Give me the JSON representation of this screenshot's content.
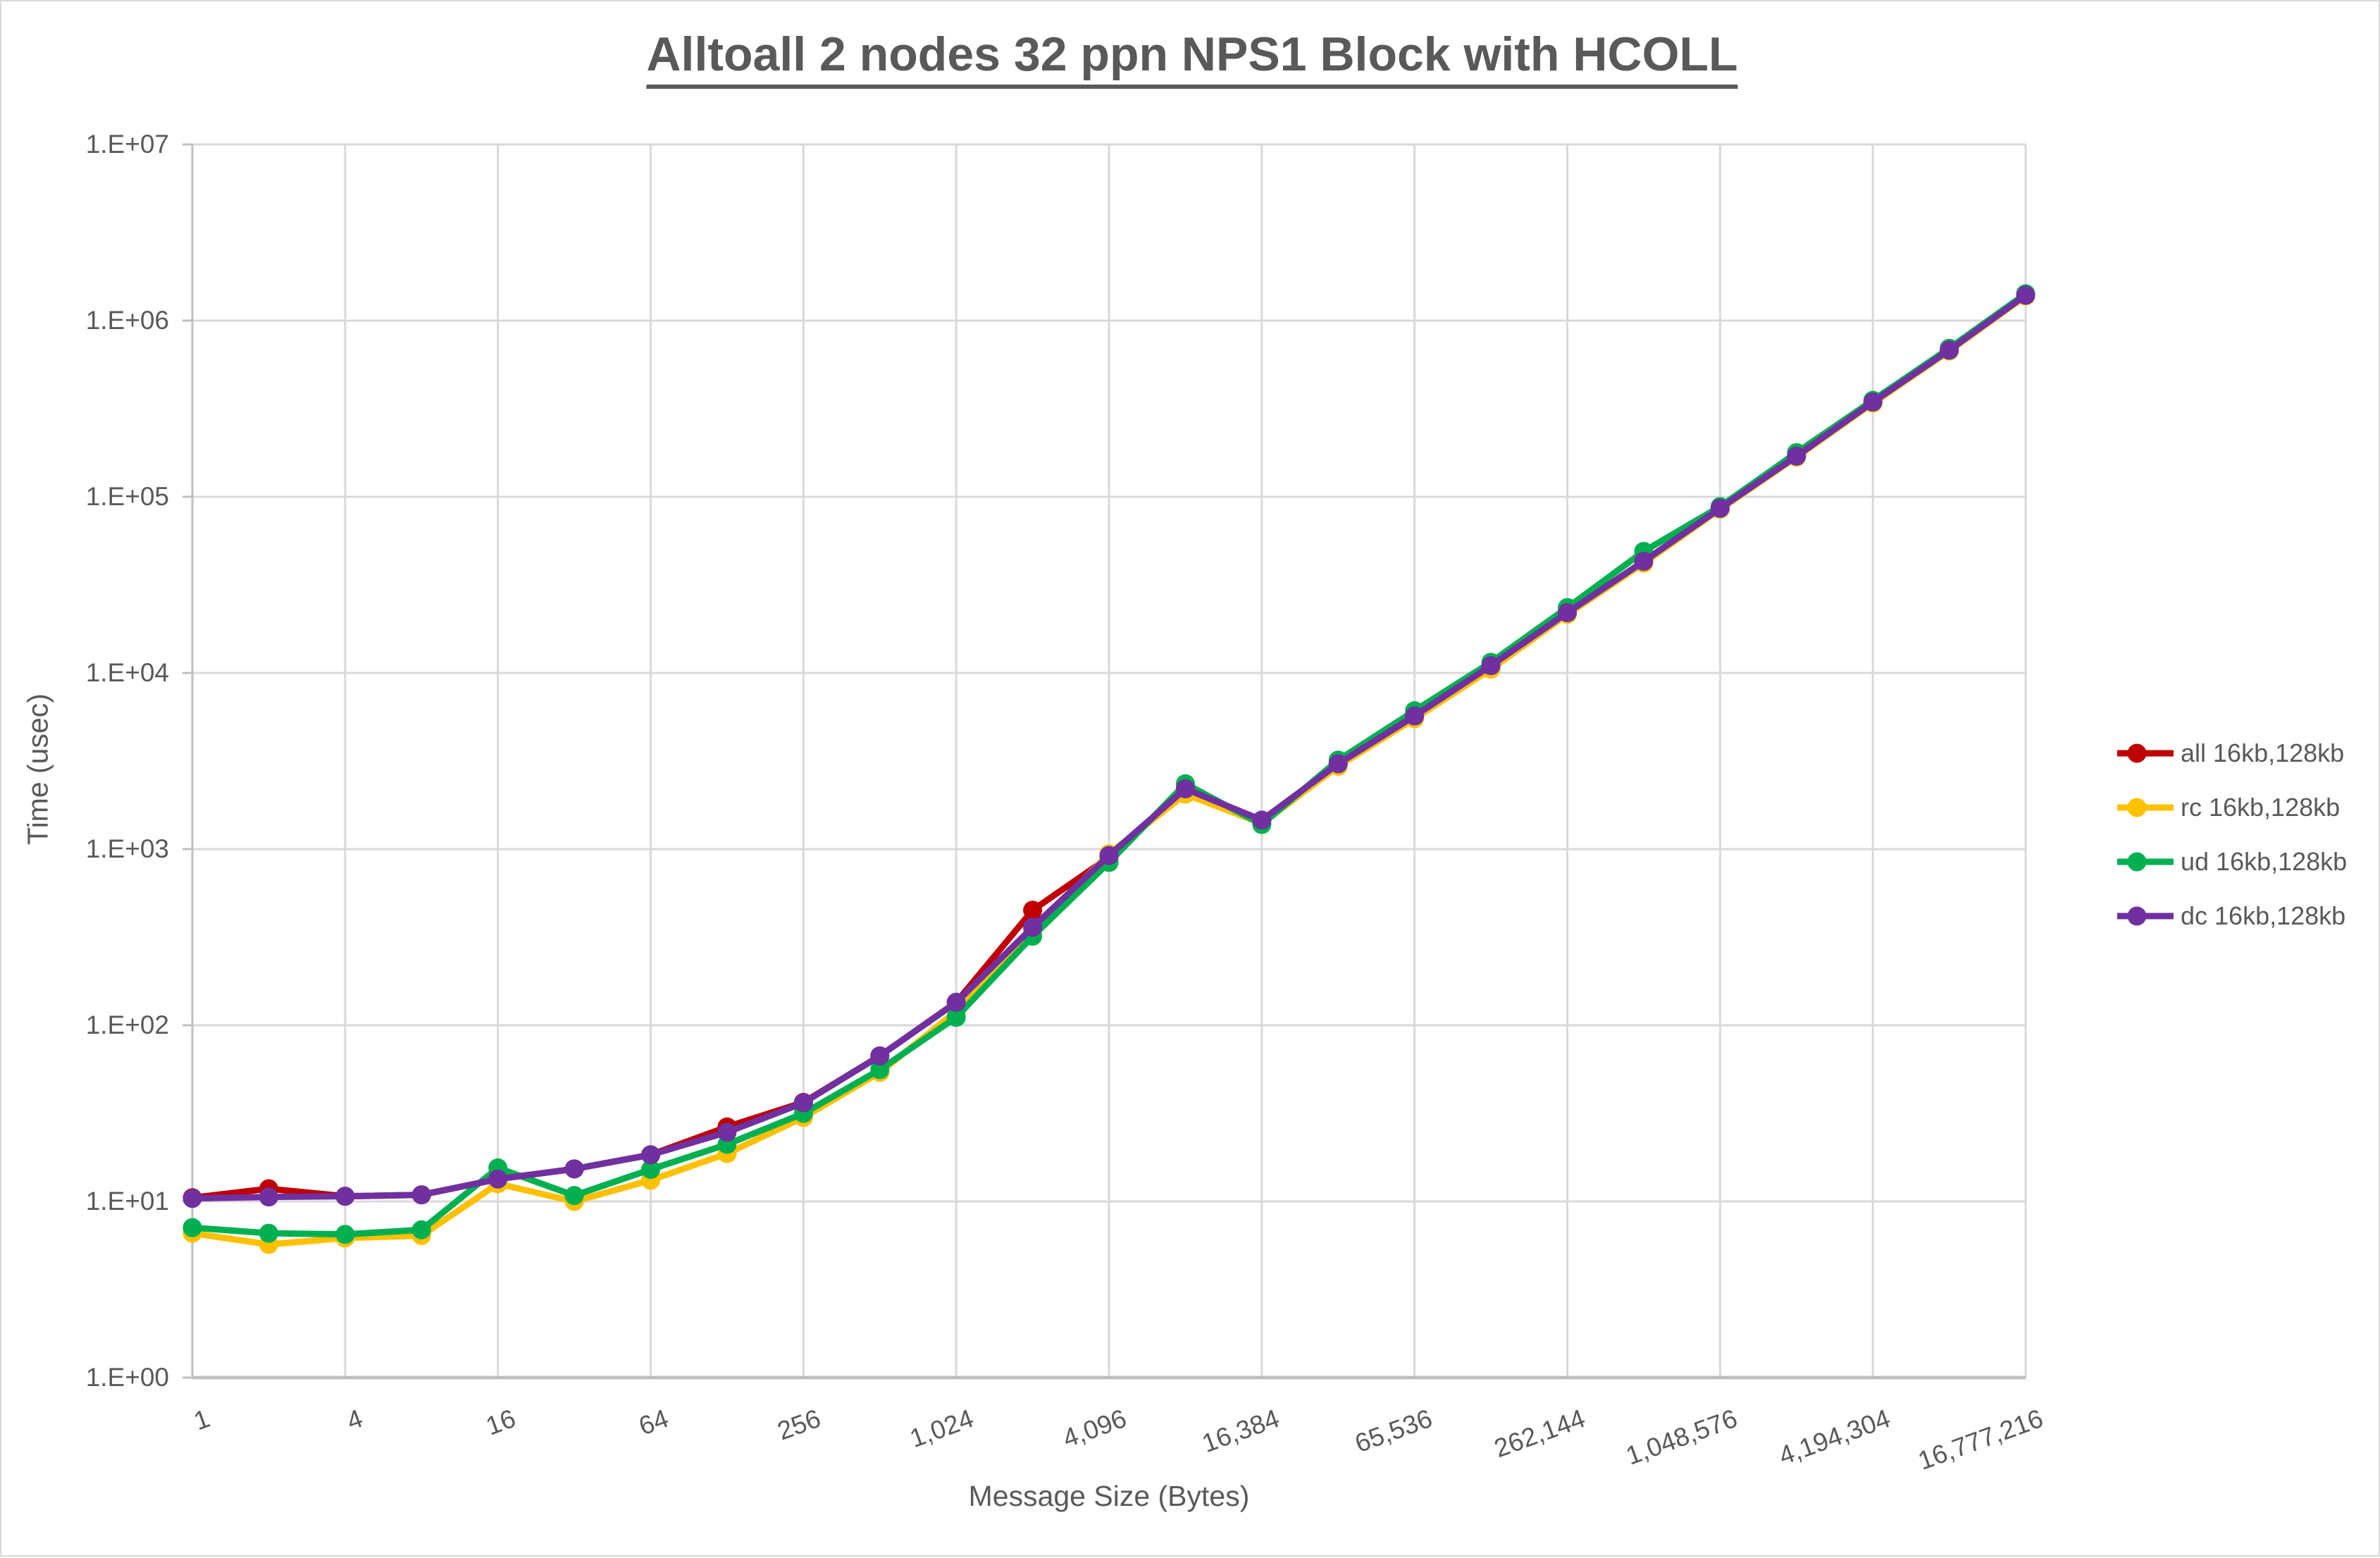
{
  "chart_data": {
    "type": "line",
    "title": "Alltoall 2 nodes 32 ppn NPS1 Block with HCOLL",
    "xlabel": "Message Size (Bytes)",
    "ylabel": "Time (usec)",
    "x_scale": "log2",
    "y_scale": "log10",
    "ylim": [
      1,
      10000000
    ],
    "xlim": [
      1,
      16777216
    ],
    "grid": true,
    "legend_position": "right",
    "y_tick_labels": [
      "1.E+00",
      "1.E+01",
      "1.E+02",
      "1.E+03",
      "1.E+04",
      "1.E+05",
      "1.E+06",
      "1.E+07"
    ],
    "x_tick_labels": [
      "1",
      "4",
      "16",
      "64",
      "256",
      "1,024",
      "4,096",
      "16,384",
      "65,536",
      "262,144",
      "1,048,576",
      "4,194,304",
      "16,777,216"
    ],
    "categories": [
      1,
      2,
      4,
      8,
      16,
      32,
      64,
      128,
      256,
      512,
      1024,
      2048,
      4096,
      8192,
      16384,
      32768,
      65536,
      131072,
      262144,
      524288,
      1048576,
      2097152,
      4194304,
      8388608,
      16777216
    ],
    "series": [
      {
        "name": "all 16kb,128kb",
        "color": "#C00000",
        "values": [
          10.5,
          11.8,
          10.7,
          10.9,
          13.4,
          15.3,
          18.4,
          26.5,
          36.5,
          67,
          135,
          450,
          900,
          2200,
          1460,
          3050,
          5700,
          11000,
          22000,
          43000,
          86000,
          170000,
          345000,
          680000,
          1390000
        ]
      },
      {
        "name": "rc 16kb,128kb",
        "color": "#FFC000",
        "values": [
          6.6,
          5.7,
          6.2,
          6.4,
          12.6,
          10.0,
          13.2,
          18.7,
          30,
          54,
          120,
          345,
          940,
          2050,
          1400,
          2950,
          5500,
          10500,
          21500,
          42000,
          85000,
          168000,
          340000,
          672000,
          1380000
        ]
      },
      {
        "name": "ud 16kb,128kb",
        "color": "#00B050",
        "values": [
          7.1,
          6.6,
          6.5,
          6.9,
          15.5,
          10.8,
          15.2,
          21.1,
          31.6,
          56,
          111,
          320,
          840,
          2350,
          1380,
          3200,
          6100,
          11500,
          23500,
          49000,
          88000,
          178000,
          353000,
          697000,
          1421000
        ]
      },
      {
        "name": "dc 16kb,128kb",
        "color": "#7030A0",
        "values": [
          10.4,
          10.6,
          10.7,
          10.9,
          13.4,
          15.3,
          18.4,
          24.7,
          36.3,
          67,
          135,
          360,
          920,
          2200,
          1460,
          3050,
          5700,
          11000,
          22000,
          43000,
          86000,
          170000,
          345000,
          680000,
          1393000
        ]
      }
    ]
  },
  "colors": {
    "gridline": "#D9D9D9",
    "axis_line": "#BFBFBF",
    "text": "#595959"
  }
}
